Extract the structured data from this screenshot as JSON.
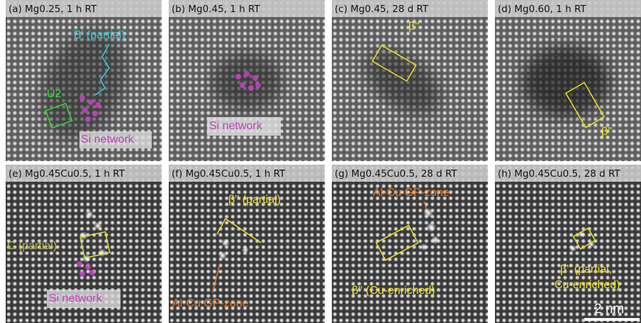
{
  "panels": [
    {
      "label": "(a) Mg0.25, 1 h RT",
      "annotations": [
        "B' (partial)",
        "U2",
        "Si network"
      ]
    },
    {
      "label": "(b) Mg0.45, 1 h RT",
      "annotations": [
        "Si network"
      ]
    },
    {
      "label": "(c) Mg0.45, 28 d RT",
      "annotations": [
        "β''"
      ]
    },
    {
      "label": "(d) Mg0.60, 1 h RT",
      "annotations": [
        "β''"
      ]
    },
    {
      "label": "(e) Mg0.45Cu0.5, 1 h RT",
      "annotations": [
        "C (partial)",
        "Si network"
      ]
    },
    {
      "label": "(f) Mg0.45Cu0.5, 1 h RT",
      "annotations": [
        "β'' (partial)",
        "Al-Cu GP-zone"
      ]
    },
    {
      "label": "(g) Mg0.45Cu0.5, 28 d RT",
      "annotations": [
        "Al-Cu GP-zone",
        "β'' (Cu-enriched)"
      ]
    },
    {
      "label": "(h) Mg0.45Cu0.5, 28 d RT",
      "annotations": [
        "β'' (partial,",
        "Cu-enriched)"
      ]
    }
  ],
  "scale_bar": "2 nm"
}
